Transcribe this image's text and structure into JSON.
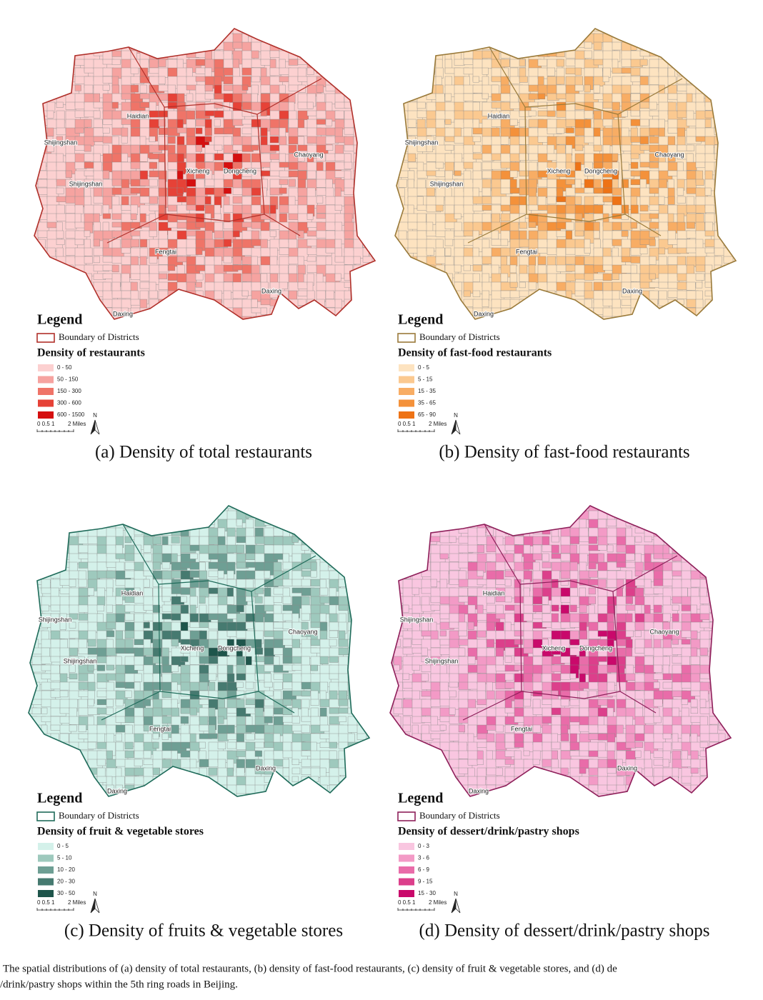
{
  "panels": [
    {
      "subcaption": "(a) Density of total restaurants",
      "districts": [
        "Haidian",
        "Shijingshan",
        "Shijingshan",
        "Xicheng",
        "Dongcheng",
        "Chaoyang",
        "Fengtai",
        "Daxing",
        "Daxing"
      ],
      "legend": {
        "title": "Legend",
        "boundary": "Boundary of Districts",
        "boundary_color": "#b0302a",
        "density_title": "Density of restaurants",
        "classes": [
          {
            "label": "0 - 50",
            "color": "#fcd0d0"
          },
          {
            "label": "50 - 150",
            "color": "#f6a3a0"
          },
          {
            "label": "150 - 300",
            "color": "#ef7468"
          },
          {
            "label": "300 - 600",
            "color": "#e64237"
          },
          {
            "label": "600 - 1500",
            "color": "#d50f0f"
          }
        ]
      },
      "scale": {
        "ticks": "0 0.5 1",
        "unit": "2 Miles",
        "north": "N"
      }
    },
    {
      "subcaption": "(b) Density of fast-food restaurants",
      "districts": [
        "Haidian",
        "Shijingshan",
        "Shijingshan",
        "Xicheng",
        "Dongcheng",
        "Chaoyang",
        "Fengtai",
        "Daxing",
        "Daxing"
      ],
      "legend": {
        "title": "Legend",
        "boundary": "Boundary of Districts",
        "boundary_color": "#9a7a3a",
        "density_title": "Density of fast-food restaurants",
        "classes": [
          {
            "label": "0 - 5",
            "color": "#fde3c0"
          },
          {
            "label": "5 - 15",
            "color": "#fbc990"
          },
          {
            "label": "15 - 35",
            "color": "#f8ad64"
          },
          {
            "label": "35 - 65",
            "color": "#f4913a"
          },
          {
            "label": "65 - 90",
            "color": "#ee7316"
          }
        ]
      },
      "scale": {
        "ticks": "0 0.5 1",
        "unit": "2 Miles",
        "north": "N"
      }
    },
    {
      "subcaption": "(c) Density of fruits & vegetable stores",
      "districts": [
        "Haidian",
        "Shijingshan",
        "Shijingshan",
        "Xicheng",
        "Dongcheng",
        "Chaoyang",
        "Fengtai",
        "Daxing",
        "Daxing"
      ],
      "legend": {
        "title": "Legend",
        "boundary": "Boundary of Districts",
        "boundary_color": "#1f6b5a",
        "density_title": "Density of fruit & vegetable stores",
        "classes": [
          {
            "label": "0 - 5",
            "color": "#d4f1ea"
          },
          {
            "label": "5 - 10",
            "color": "#9ec9bd"
          },
          {
            "label": "10 - 20",
            "color": "#6e9f94"
          },
          {
            "label": "20 - 30",
            "color": "#467a70"
          },
          {
            "label": "30 - 50",
            "color": "#1e554b"
          }
        ]
      },
      "scale": {
        "ticks": "0 0.5 1",
        "unit": "2 Miles",
        "north": "N"
      }
    },
    {
      "subcaption": "(d) Density of dessert/drink/pastry shops",
      "districts": [
        "Haidian",
        "Shijingshan",
        "Shijingshan",
        "Xicheng",
        "Dongcheng",
        "Chaoyang",
        "Fengtai",
        "Daxing",
        "Daxing"
      ],
      "legend": {
        "title": "Legend",
        "boundary": "Boundary of Districts",
        "boundary_color": "#8e1f5a",
        "density_title": "Density of dessert/drink/pastry shops",
        "classes": [
          {
            "label": "0 - 3",
            "color": "#f9c6e0"
          },
          {
            "label": "3 - 6",
            "color": "#f39ac6"
          },
          {
            "label": "6 - 9",
            "color": "#e96ca9"
          },
          {
            "label": "9 - 15",
            "color": "#dc3f8b"
          },
          {
            "label": "15 - 30",
            "color": "#c9096b"
          }
        ]
      },
      "scale": {
        "ticks": "0 0.5 1",
        "unit": "2 Miles",
        "north": "N"
      }
    }
  ],
  "caption": [
    "The spatial distributions of (a) density of total restaurants, (b) density of fast-food restaurants, (c) density of fruit & vegetable stores, and (d) de",
    "/drink/pastry shops within the 5th ring roads in Beijing."
  ]
}
